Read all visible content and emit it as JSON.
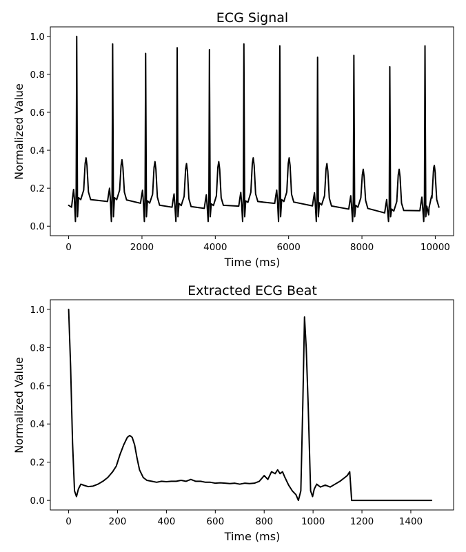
{
  "chart_data": [
    {
      "type": "line",
      "title": "ECG Signal",
      "xlabel": "Time (ms)",
      "ylabel": "Normalized Value",
      "xlim": [
        -500,
        10500
      ],
      "ylim": [
        -0.05,
        1.05
      ],
      "xticks": [
        0,
        2000,
        4000,
        6000,
        8000,
        10000
      ],
      "xtick_labels": [
        "0",
        "2000",
        "4000",
        "6000",
        "8000",
        "10000"
      ],
      "yticks": [
        0.0,
        0.2,
        0.4,
        0.6,
        0.8,
        1.0
      ],
      "ytick_labels": [
        "0.0",
        "0.2",
        "0.4",
        "0.6",
        "0.8",
        "1.0"
      ],
      "grid": false,
      "baseline": [
        [
          0,
          0.11
        ],
        [
          80,
          0.1
        ],
        [
          150,
          0.13
        ],
        [
          400,
          0.13
        ],
        [
          900,
          0.13
        ],
        [
          1100,
          0.13
        ],
        [
          1500,
          0.13
        ],
        [
          2000,
          0.12
        ],
        [
          2500,
          0.1
        ],
        [
          3000,
          0.1
        ],
        [
          3500,
          0.09
        ],
        [
          4000,
          0.1
        ],
        [
          4500,
          0.1
        ],
        [
          5000,
          0.12
        ],
        [
          5500,
          0.12
        ],
        [
          6000,
          0.12
        ],
        [
          6500,
          0.11
        ],
        [
          7000,
          0.1
        ],
        [
          7500,
          0.09
        ],
        [
          8000,
          0.09
        ],
        [
          8500,
          0.07
        ],
        [
          9000,
          0.07
        ],
        [
          9500,
          0.08
        ],
        [
          10000,
          0.09
        ]
      ],
      "beats": [
        {
          "r": 220,
          "peak": 1.0,
          "t": 0.36
        },
        {
          "r": 1200,
          "peak": 0.96,
          "t": 0.35
        },
        {
          "r": 2100,
          "peak": 0.91,
          "t": 0.34
        },
        {
          "r": 2960,
          "peak": 0.94,
          "t": 0.33
        },
        {
          "r": 3840,
          "peak": 0.93,
          "t": 0.34
        },
        {
          "r": 4780,
          "peak": 0.96,
          "t": 0.36
        },
        {
          "r": 5760,
          "peak": 0.95,
          "t": 0.36
        },
        {
          "r": 6790,
          "peak": 0.89,
          "t": 0.33
        },
        {
          "r": 7780,
          "peak": 0.9,
          "t": 0.3
        },
        {
          "r": 8760,
          "peak": 0.84,
          "t": 0.3
        },
        {
          "r": 9720,
          "peak": 0.95,
          "t": 0.32
        }
      ],
      "tail": [
        [
          9820,
          0.06
        ],
        [
          9900,
          0.16
        ],
        [
          9960,
          0.31
        ],
        [
          10000,
          0.27
        ]
      ]
    },
    {
      "type": "line",
      "title": "Extracted ECG Beat",
      "xlabel": "Time (ms)",
      "ylabel": "Normalized Value",
      "xlim": [
        -75,
        1575
      ],
      "ylim": [
        -0.05,
        1.05
      ],
      "xticks": [
        0,
        200,
        400,
        600,
        800,
        1000,
        1200,
        1400
      ],
      "xtick_labels": [
        "0",
        "200",
        "400",
        "600",
        "800",
        "1000",
        "1200",
        "1400"
      ],
      "yticks": [
        0.0,
        0.2,
        0.4,
        0.6,
        0.8,
        1.0
      ],
      "ytick_labels": [
        "0.0",
        "0.2",
        "0.4",
        "0.6",
        "0.8",
        "1.0"
      ],
      "grid": false,
      "points": [
        [
          0,
          1.0
        ],
        [
          8,
          0.7
        ],
        [
          16,
          0.3
        ],
        [
          24,
          0.05
        ],
        [
          32,
          0.02
        ],
        [
          40,
          0.06
        ],
        [
          50,
          0.085
        ],
        [
          65,
          0.078
        ],
        [
          80,
          0.072
        ],
        [
          100,
          0.075
        ],
        [
          120,
          0.085
        ],
        [
          140,
          0.1
        ],
        [
          160,
          0.12
        ],
        [
          180,
          0.15
        ],
        [
          195,
          0.18
        ],
        [
          210,
          0.24
        ],
        [
          225,
          0.29
        ],
        [
          240,
          0.33
        ],
        [
          250,
          0.34
        ],
        [
          260,
          0.33
        ],
        [
          270,
          0.29
        ],
        [
          280,
          0.22
        ],
        [
          290,
          0.16
        ],
        [
          305,
          0.12
        ],
        [
          320,
          0.105
        ],
        [
          340,
          0.1
        ],
        [
          360,
          0.095
        ],
        [
          380,
          0.1
        ],
        [
          400,
          0.098
        ],
        [
          420,
          0.1
        ],
        [
          440,
          0.1
        ],
        [
          460,
          0.105
        ],
        [
          480,
          0.1
        ],
        [
          500,
          0.11
        ],
        [
          520,
          0.1
        ],
        [
          540,
          0.1
        ],
        [
          560,
          0.095
        ],
        [
          580,
          0.095
        ],
        [
          600,
          0.09
        ],
        [
          620,
          0.092
        ],
        [
          640,
          0.09
        ],
        [
          660,
          0.088
        ],
        [
          680,
          0.09
        ],
        [
          700,
          0.085
        ],
        [
          720,
          0.09
        ],
        [
          740,
          0.088
        ],
        [
          760,
          0.09
        ],
        [
          780,
          0.1
        ],
        [
          800,
          0.13
        ],
        [
          815,
          0.11
        ],
        [
          830,
          0.15
        ],
        [
          845,
          0.14
        ],
        [
          855,
          0.16
        ],
        [
          865,
          0.14
        ],
        [
          875,
          0.15
        ],
        [
          885,
          0.12
        ],
        [
          900,
          0.08
        ],
        [
          915,
          0.05
        ],
        [
          930,
          0.03
        ],
        [
          940,
          0.0
        ],
        [
          950,
          0.05
        ],
        [
          958,
          0.5
        ],
        [
          965,
          0.96
        ],
        [
          972,
          0.8
        ],
        [
          980,
          0.5
        ],
        [
          990,
          0.05
        ],
        [
          998,
          0.02
        ],
        [
          1005,
          0.06
        ],
        [
          1015,
          0.085
        ],
        [
          1030,
          0.07
        ],
        [
          1050,
          0.08
        ],
        [
          1070,
          0.07
        ],
        [
          1090,
          0.085
        ],
        [
          1110,
          0.1
        ],
        [
          1130,
          0.12
        ],
        [
          1140,
          0.13
        ],
        [
          1150,
          0.15
        ],
        [
          1158,
          0.0
        ],
        [
          1200,
          0.0
        ],
        [
          1300,
          0.0
        ],
        [
          1400,
          0.0
        ],
        [
          1485,
          0.0
        ]
      ]
    }
  ]
}
